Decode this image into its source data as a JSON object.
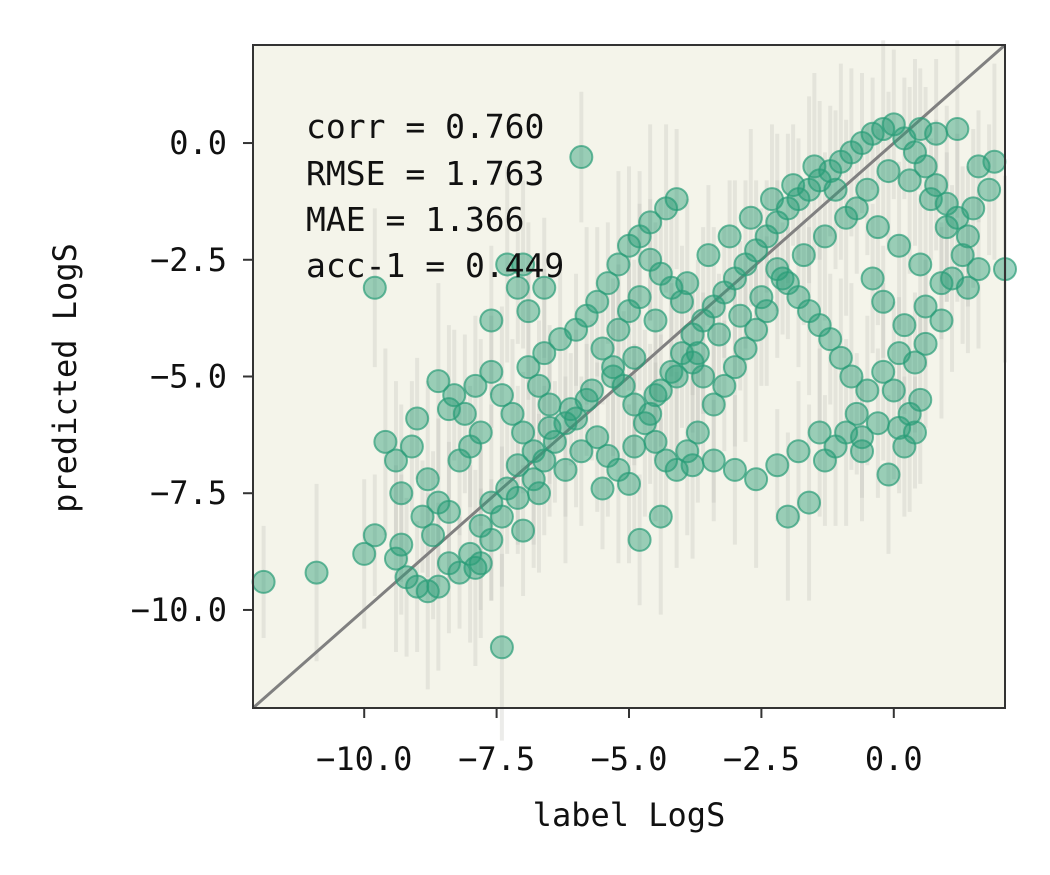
{
  "chart_data": {
    "type": "scatter",
    "title": "",
    "xlabel": "label LogS",
    "ylabel": "predicted LogS",
    "xlim": [
      -12.1,
      2.1
    ],
    "ylim": [
      -12.1,
      2.1
    ],
    "xticks": [
      -10.0,
      -7.5,
      -5.0,
      -2.5,
      0.0
    ],
    "yticks": [
      -10.0,
      -7.5,
      -5.0,
      -2.5,
      0.0
    ],
    "xtick_labels": [
      "−10.0",
      "−7.5",
      "−5.0",
      "−2.5",
      "0.0"
    ],
    "ytick_labels": [
      "−10.0",
      "−7.5",
      "−5.0",
      "−2.5",
      "0.0"
    ],
    "grid": false,
    "background_color": "#f4f4ea",
    "marker_color": "#2a9d78",
    "errorbar_color": "#b8b8b0",
    "identity_line_color": "#808080",
    "identity_line": [
      [
        -12.1,
        -12.1
      ],
      [
        2.1,
        2.1
      ]
    ],
    "stats": {
      "corr": "corr = 0.760",
      "rmse": "RMSE = 1.763",
      "mae": "MAE = 1.366",
      "acc": "acc-1 = 0.449"
    },
    "points": [
      [
        -11.9,
        -9.4
      ],
      [
        -10.9,
        -9.2
      ],
      [
        -10.0,
        -8.8
      ],
      [
        -9.8,
        -8.4
      ],
      [
        -9.4,
        -8.9
      ],
      [
        -9.2,
        -9.3
      ],
      [
        -9.0,
        -9.5
      ],
      [
        -8.8,
        -9.6
      ],
      [
        -8.6,
        -9.5
      ],
      [
        -8.4,
        -9.0
      ],
      [
        -8.2,
        -9.2
      ],
      [
        -8.0,
        -8.8
      ],
      [
        -7.8,
        -9.0
      ],
      [
        -7.6,
        -8.5
      ],
      [
        -7.4,
        -10.8
      ],
      [
        -9.8,
        -3.1
      ],
      [
        -5.9,
        -0.3
      ],
      [
        -7.3,
        -2.6
      ],
      [
        -7.0,
        -2.6
      ],
      [
        -6.6,
        -3.1
      ],
      [
        -7.1,
        -3.1
      ],
      [
        -6.9,
        -3.6
      ],
      [
        -7.6,
        -3.8
      ],
      [
        -9.0,
        -5.9
      ],
      [
        -9.6,
        -6.4
      ],
      [
        -9.4,
        -6.8
      ],
      [
        -9.1,
        -6.5
      ],
      [
        -8.8,
        -7.2
      ],
      [
        -8.6,
        -7.7
      ],
      [
        -8.4,
        -7.9
      ],
      [
        -8.9,
        -8.0
      ],
      [
        -9.3,
        -7.5
      ],
      [
        -8.2,
        -6.8
      ],
      [
        -8.0,
        -6.5
      ],
      [
        -7.8,
        -6.2
      ],
      [
        -8.1,
        -5.8
      ],
      [
        -8.3,
        -5.4
      ],
      [
        -8.6,
        -5.1
      ],
      [
        -8.4,
        -5.7
      ],
      [
        -7.9,
        -5.2
      ],
      [
        -7.6,
        -4.9
      ],
      [
        -7.4,
        -5.4
      ],
      [
        -7.2,
        -5.8
      ],
      [
        -7.0,
        -6.2
      ],
      [
        -6.8,
        -6.6
      ],
      [
        -7.1,
        -6.9
      ],
      [
        -7.3,
        -7.4
      ],
      [
        -7.6,
        -7.7
      ],
      [
        -7.8,
        -8.2
      ],
      [
        -7.4,
        -8.0
      ],
      [
        -7.1,
        -7.6
      ],
      [
        -6.8,
        -7.2
      ],
      [
        -6.6,
        -6.8
      ],
      [
        -6.4,
        -6.4
      ],
      [
        -6.2,
        -6.0
      ],
      [
        -6.5,
        -5.6
      ],
      [
        -6.7,
        -5.2
      ],
      [
        -6.9,
        -4.8
      ],
      [
        -6.6,
        -4.5
      ],
      [
        -6.3,
        -4.2
      ],
      [
        -6.0,
        -4.0
      ],
      [
        -5.8,
        -3.7
      ],
      [
        -5.6,
        -3.4
      ],
      [
        -5.4,
        -3.0
      ],
      [
        -5.2,
        -2.6
      ],
      [
        -5.0,
        -2.2
      ],
      [
        -4.8,
        -2.0
      ],
      [
        -4.6,
        -1.7
      ],
      [
        -4.3,
        -1.4
      ],
      [
        -4.1,
        -1.2
      ],
      [
        -5.5,
        -4.4
      ],
      [
        -5.3,
        -4.8
      ],
      [
        -5.1,
        -5.2
      ],
      [
        -4.9,
        -5.6
      ],
      [
        -4.7,
        -6.0
      ],
      [
        -4.5,
        -6.4
      ],
      [
        -4.3,
        -6.8
      ],
      [
        -4.1,
        -7.0
      ],
      [
        -3.9,
        -6.6
      ],
      [
        -3.7,
        -6.2
      ],
      [
        -5.8,
        -5.5
      ],
      [
        -6.0,
        -5.9
      ],
      [
        -5.6,
        -6.3
      ],
      [
        -5.4,
        -6.7
      ],
      [
        -5.2,
        -7.0
      ],
      [
        -5.0,
        -7.3
      ],
      [
        -4.8,
        -8.5
      ],
      [
        -4.4,
        -8.0
      ],
      [
        -4.9,
        -6.5
      ],
      [
        -4.6,
        -5.8
      ],
      [
        -4.4,
        -5.3
      ],
      [
        -4.2,
        -4.9
      ],
      [
        -4.0,
        -4.5
      ],
      [
        -3.8,
        -4.1
      ],
      [
        -3.6,
        -3.8
      ],
      [
        -3.4,
        -3.5
      ],
      [
        -3.2,
        -3.2
      ],
      [
        -3.0,
        -2.9
      ],
      [
        -2.8,
        -2.6
      ],
      [
        -2.6,
        -2.3
      ],
      [
        -2.4,
        -2.0
      ],
      [
        -2.2,
        -1.7
      ],
      [
        -2.0,
        -1.4
      ],
      [
        -1.8,
        -1.2
      ],
      [
        -1.6,
        -1.0
      ],
      [
        -1.4,
        -0.8
      ],
      [
        -1.2,
        -0.6
      ],
      [
        -1.0,
        -0.4
      ],
      [
        -0.8,
        -0.2
      ],
      [
        -0.6,
        0.0
      ],
      [
        -0.4,
        0.2
      ],
      [
        -0.2,
        0.3
      ],
      [
        0.0,
        0.4
      ],
      [
        0.2,
        0.1
      ],
      [
        0.4,
        -0.2
      ],
      [
        0.6,
        -0.5
      ],
      [
        0.8,
        -0.9
      ],
      [
        1.0,
        -1.3
      ],
      [
        1.2,
        -1.6
      ],
      [
        1.4,
        -2.0
      ],
      [
        1.6,
        -0.5
      ],
      [
        1.2,
        0.3
      ],
      [
        0.8,
        0.2
      ],
      [
        0.5,
        0.3
      ],
      [
        2.1,
        -2.7
      ],
      [
        1.6,
        -2.7
      ],
      [
        1.4,
        -3.1
      ],
      [
        0.9,
        -3.8
      ],
      [
        0.6,
        -4.3
      ],
      [
        0.4,
        -4.7
      ],
      [
        0.1,
        -4.5
      ],
      [
        -0.2,
        -4.9
      ],
      [
        -0.5,
        -5.3
      ],
      [
        -0.7,
        -5.8
      ],
      [
        -0.9,
        -6.2
      ],
      [
        -1.1,
        -6.5
      ],
      [
        -1.3,
        -6.8
      ],
      [
        -1.6,
        -7.7
      ],
      [
        -2.0,
        -8.0
      ],
      [
        -1.8,
        -6.6
      ],
      [
        -2.2,
        -6.9
      ],
      [
        -2.6,
        -7.2
      ],
      [
        -3.0,
        -7.0
      ],
      [
        -3.4,
        -6.8
      ],
      [
        -3.8,
        -6.9
      ],
      [
        -0.1,
        -7.1
      ],
      [
        0.1,
        -6.1
      ],
      [
        0.3,
        -5.8
      ],
      [
        0.5,
        -5.5
      ],
      [
        0.2,
        -6.5
      ],
      [
        0.4,
        -6.2
      ],
      [
        0.0,
        -5.3
      ],
      [
        -0.3,
        -6.0
      ],
      [
        -0.6,
        -6.3
      ],
      [
        -0.8,
        -5.0
      ],
      [
        -1.0,
        -4.6
      ],
      [
        -1.2,
        -4.2
      ],
      [
        -1.4,
        -3.9
      ],
      [
        -1.6,
        -3.6
      ],
      [
        -1.8,
        -3.3
      ],
      [
        -2.0,
        -3.0
      ],
      [
        -2.2,
        -2.7
      ],
      [
        -2.4,
        -3.6
      ],
      [
        -2.6,
        -4.0
      ],
      [
        -2.8,
        -4.4
      ],
      [
        -3.0,
        -4.8
      ],
      [
        -3.2,
        -5.2
      ],
      [
        -3.4,
        -5.6
      ],
      [
        -3.6,
        -5.0
      ],
      [
        -3.8,
        -4.7
      ],
      [
        -4.0,
        -3.4
      ],
      [
        -4.2,
        -3.1
      ],
      [
        -4.4,
        -2.8
      ],
      [
        -4.6,
        -2.5
      ],
      [
        -4.8,
        -3.3
      ],
      [
        -5.0,
        -3.6
      ],
      [
        -5.2,
        -4.0
      ],
      [
        -4.5,
        -3.8
      ],
      [
        -3.9,
        -3.0
      ],
      [
        -3.5,
        -2.4
      ],
      [
        -3.1,
        -2.0
      ],
      [
        -2.7,
        -1.6
      ],
      [
        -2.3,
        -1.2
      ],
      [
        -1.9,
        -0.9
      ],
      [
        -1.5,
        -0.5
      ],
      [
        -1.1,
        -1.0
      ],
      [
        -0.7,
        -1.4
      ],
      [
        -0.3,
        -1.8
      ],
      [
        0.1,
        -2.2
      ],
      [
        0.5,
        -2.6
      ],
      [
        0.9,
        -3.0
      ],
      [
        1.3,
        -2.4
      ],
      [
        1.0,
        -1.8
      ],
      [
        0.7,
        -1.2
      ],
      [
        0.3,
        -0.8
      ],
      [
        -0.1,
        -0.6
      ],
      [
        -0.5,
        -1.0
      ],
      [
        -0.9,
        -1.6
      ],
      [
        -1.3,
        -2.0
      ],
      [
        -1.7,
        -2.4
      ],
      [
        -2.1,
        -2.9
      ],
      [
        -2.5,
        -3.3
      ],
      [
        -2.9,
        -3.7
      ],
      [
        -3.3,
        -4.1
      ],
      [
        -3.7,
        -4.5
      ],
      [
        -4.1,
        -5.0
      ],
      [
        -4.5,
        -5.4
      ],
      [
        -4.9,
        -4.6
      ],
      [
        -5.3,
        -5.0
      ],
      [
        -5.7,
        -5.3
      ],
      [
        -6.1,
        -5.7
      ],
      [
        -6.5,
        -6.1
      ],
      [
        -5.9,
        -6.6
      ],
      [
        -5.5,
        -7.4
      ],
      [
        -6.2,
        -7.0
      ],
      [
        -6.7,
        -7.5
      ],
      [
        -7.0,
        -8.3
      ],
      [
        -7.9,
        -9.1
      ],
      [
        -8.7,
        -8.4
      ],
      [
        -9.3,
        -8.6
      ],
      [
        -0.2,
        -3.4
      ],
      [
        0.2,
        -3.9
      ],
      [
        -0.4,
        -2.9
      ],
      [
        0.6,
        -3.5
      ],
      [
        1.1,
        -2.9
      ],
      [
        1.5,
        -1.4
      ],
      [
        1.8,
        -1.0
      ],
      [
        1.9,
        -0.4
      ],
      [
        -1.4,
        -6.2
      ],
      [
        -0.6,
        -6.6
      ]
    ]
  }
}
